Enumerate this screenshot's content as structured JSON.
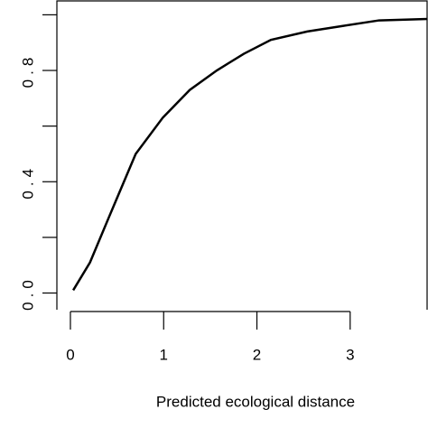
{
  "chart_data": {
    "type": "line",
    "x_label": "Predicted ecological distance",
    "x": [
      0.03,
      0.21,
      0.41,
      0.7,
      0.99,
      1.28,
      1.57,
      1.86,
      2.15,
      2.54,
      2.92,
      3.31,
      3.83
    ],
    "values": [
      0.01,
      0.11,
      0.27,
      0.5,
      0.63,
      0.73,
      0.8,
      0.86,
      0.91,
      0.94,
      0.96,
      0.98,
      0.985
    ],
    "color": "#000000",
    "xlim": [
      -0.145,
      3.825
    ],
    "ylim": [
      -0.06,
      1.05
    ],
    "xticks": [
      0,
      1,
      2,
      3
    ],
    "yticks": [
      {
        "value": 0,
        "label": "0.0"
      },
      {
        "value": 0.4,
        "label": "0.4"
      },
      {
        "value": 0.8,
        "label": "0.8"
      }
    ],
    "yminor_ticks": [
      0.2,
      0.6,
      1.0
    ]
  }
}
